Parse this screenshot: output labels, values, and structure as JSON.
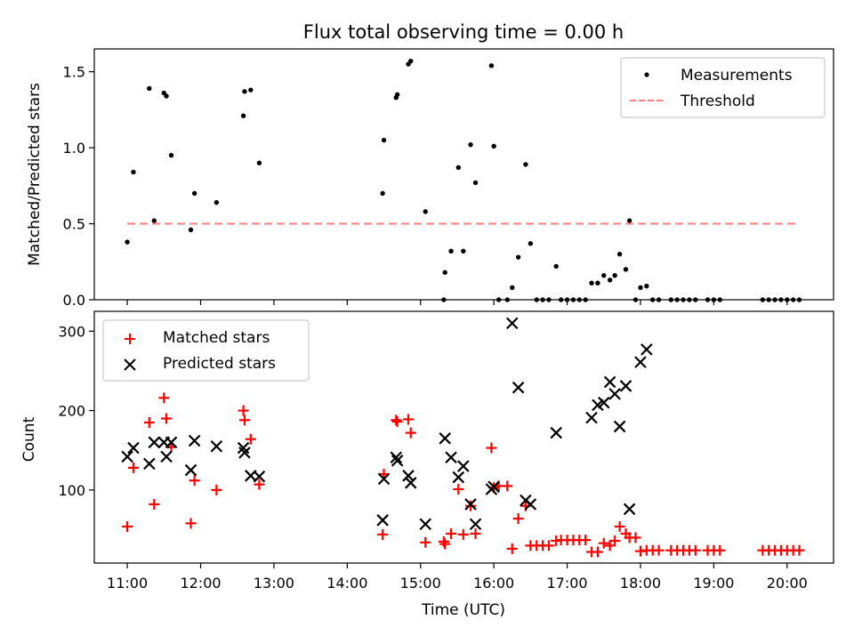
{
  "chart_data": [
    {
      "type": "scatter",
      "title": "Flux total observing time = 0.00 h",
      "xlabel": "",
      "ylabel": "Matched/Predicted stars",
      "x_unit": "time (UTC)",
      "xlim": [
        "10:33",
        "20:38"
      ],
      "ylim": [
        0,
        1.65
      ],
      "yticks": [
        0.0,
        0.5,
        1.0,
        1.5
      ],
      "ytick_labels": [
        "0.0",
        "0.5",
        "1.0",
        "1.5"
      ],
      "legend": {
        "placement": "upper right",
        "entries": [
          "Measurements",
          "Threshold"
        ]
      },
      "series": [
        {
          "name": "Measurements",
          "marker": "dot",
          "color": "#000000",
          "points": [
            [
              "11:00",
              0.38
            ],
            [
              "11:05",
              0.84
            ],
            [
              "11:18",
              1.39
            ],
            [
              "11:22",
              0.52
            ],
            [
              "11:30",
              1.36
            ],
            [
              "11:32",
              1.34
            ],
            [
              "11:36",
              0.95
            ],
            [
              "11:52",
              0.46
            ],
            [
              "11:55",
              0.7
            ],
            [
              "12:13",
              0.64
            ],
            [
              "12:35",
              1.21
            ],
            [
              "12:36",
              1.37
            ],
            [
              "12:41",
              1.38
            ],
            [
              "12:48",
              0.9
            ],
            [
              "14:29",
              0.7
            ],
            [
              "14:30",
              1.05
            ],
            [
              "14:40",
              1.33
            ],
            [
              "14:41",
              1.35
            ],
            [
              "14:50",
              1.55
            ],
            [
              "14:52",
              1.57
            ],
            [
              "15:04",
              0.58
            ],
            [
              "15:19",
              0.0
            ],
            [
              "15:20",
              0.18
            ],
            [
              "15:25",
              0.32
            ],
            [
              "15:31",
              0.87
            ],
            [
              "15:35",
              0.32
            ],
            [
              "15:41",
              1.02
            ],
            [
              "15:45",
              0.77
            ],
            [
              "15:58",
              1.54
            ],
            [
              "16:00",
              1.01
            ],
            [
              "16:04",
              0.0
            ],
            [
              "16:11",
              0.0
            ],
            [
              "16:15",
              0.08
            ],
            [
              "16:20",
              0.28
            ],
            [
              "16:26",
              0.89
            ],
            [
              "16:30",
              0.37
            ],
            [
              "16:35",
              0.0
            ],
            [
              "16:40",
              0.0
            ],
            [
              "16:45",
              0.0
            ],
            [
              "16:51",
              0.22
            ],
            [
              "16:55",
              0.0
            ],
            [
              "17:00",
              0.0
            ],
            [
              "17:05",
              0.0
            ],
            [
              "17:10",
              0.0
            ],
            [
              "17:15",
              0.0
            ],
            [
              "17:20",
              0.11
            ],
            [
              "17:25",
              0.11
            ],
            [
              "17:30",
              0.16
            ],
            [
              "17:35",
              0.13
            ],
            [
              "17:39",
              0.16
            ],
            [
              "17:43",
              0.3
            ],
            [
              "17:48",
              0.2
            ],
            [
              "17:51",
              0.52
            ],
            [
              "17:56",
              0.0
            ],
            [
              "18:00",
              0.08
            ],
            [
              "18:05",
              0.09
            ],
            [
              "18:10",
              0.0
            ],
            [
              "18:15",
              0.0
            ],
            [
              "18:25",
              0.0
            ],
            [
              "18:30",
              0.0
            ],
            [
              "18:35",
              0.0
            ],
            [
              "18:40",
              0.0
            ],
            [
              "18:45",
              0.0
            ],
            [
              "18:55",
              0.0
            ],
            [
              "19:00",
              0.0
            ],
            [
              "19:05",
              0.0
            ],
            [
              "19:40",
              0.0
            ],
            [
              "19:45",
              0.0
            ],
            [
              "19:50",
              0.0
            ],
            [
              "19:55",
              0.0
            ],
            [
              "20:00",
              0.0
            ],
            [
              "20:05",
              0.0
            ],
            [
              "20:10",
              0.0
            ]
          ]
        },
        {
          "name": "Threshold",
          "marker": "dashed-line",
          "color": "#ff7f7f",
          "points": [
            [
              "11:00",
              0.5
            ],
            [
              "20:10",
              0.5
            ]
          ]
        }
      ]
    },
    {
      "type": "scatter",
      "title": "",
      "xlabel": "Time (UTC)",
      "ylabel": "Count",
      "x_unit": "time (UTC)",
      "xlim": [
        "10:33",
        "20:38"
      ],
      "ylim": [
        8,
        325
      ],
      "xticks": [
        "11:00",
        "12:00",
        "13:00",
        "14:00",
        "15:00",
        "16:00",
        "17:00",
        "18:00",
        "19:00",
        "20:00"
      ],
      "yticks": [
        100,
        200,
        300
      ],
      "ytick_labels": [
        "100",
        "200",
        "300"
      ],
      "legend": {
        "placement": "upper left",
        "entries": [
          "Matched stars",
          "Predicted stars"
        ]
      },
      "series": [
        {
          "name": "Matched stars",
          "marker": "plus",
          "color": "#ff0000",
          "points": [
            [
              "11:00",
              54
            ],
            [
              "11:05",
              128
            ],
            [
              "11:18",
              185
            ],
            [
              "11:22",
              82
            ],
            [
              "11:30",
              216
            ],
            [
              "11:32",
              190
            ],
            [
              "11:36",
              154
            ],
            [
              "11:52",
              58
            ],
            [
              "11:55",
              112
            ],
            [
              "12:13",
              100
            ],
            [
              "12:35",
              200
            ],
            [
              "12:36",
              188
            ],
            [
              "12:41",
              164
            ],
            [
              "12:48",
              107
            ],
            [
              "14:29",
              44
            ],
            [
              "14:30",
              120
            ],
            [
              "14:40",
              188
            ],
            [
              "14:41",
              186
            ],
            [
              "14:50",
              189
            ],
            [
              "14:52",
              172
            ],
            [
              "15:04",
              34
            ],
            [
              "15:19",
              35
            ],
            [
              "15:20",
              32
            ],
            [
              "15:25",
              45
            ],
            [
              "15:31",
              101
            ],
            [
              "15:35",
              44
            ],
            [
              "15:41",
              80
            ],
            [
              "15:45",
              45
            ],
            [
              "15:58",
              153
            ],
            [
              "16:00",
              103
            ],
            [
              "16:04",
              105
            ],
            [
              "16:11",
              105
            ],
            [
              "16:15",
              26
            ],
            [
              "16:20",
              64
            ],
            [
              "16:26",
              80
            ],
            [
              "16:30",
              30
            ],
            [
              "16:35",
              30
            ],
            [
              "16:40",
              30
            ],
            [
              "16:45",
              30
            ],
            [
              "16:51",
              36
            ],
            [
              "16:55",
              37
            ],
            [
              "17:00",
              37
            ],
            [
              "17:05",
              37
            ],
            [
              "17:10",
              37
            ],
            [
              "17:15",
              37
            ],
            [
              "17:20",
              22
            ],
            [
              "17:25",
              22
            ],
            [
              "17:30",
              33
            ],
            [
              "17:35",
              30
            ],
            [
              "17:39",
              36
            ],
            [
              "17:43",
              54
            ],
            [
              "17:48",
              45
            ],
            [
              "17:51",
              40
            ],
            [
              "17:56",
              40
            ],
            [
              "18:00",
              23
            ],
            [
              "18:05",
              24
            ],
            [
              "18:10",
              24
            ],
            [
              "18:15",
              24
            ],
            [
              "18:25",
              24
            ],
            [
              "18:30",
              24
            ],
            [
              "18:35",
              24
            ],
            [
              "18:40",
              24
            ],
            [
              "18:45",
              24
            ],
            [
              "18:55",
              24
            ],
            [
              "19:00",
              24
            ],
            [
              "19:05",
              24
            ],
            [
              "19:40",
              24
            ],
            [
              "19:45",
              24
            ],
            [
              "19:50",
              24
            ],
            [
              "19:55",
              24
            ],
            [
              "20:00",
              24
            ],
            [
              "20:05",
              24
            ],
            [
              "20:10",
              24
            ]
          ]
        },
        {
          "name": "Predicted stars",
          "marker": "x",
          "color": "#000000",
          "points": [
            [
              "11:00",
              142
            ],
            [
              "11:05",
              153
            ],
            [
              "11:18",
              133
            ],
            [
              "11:22",
              160
            ],
            [
              "11:30",
              160
            ],
            [
              "11:32",
              142
            ],
            [
              "11:36",
              160
            ],
            [
              "11:52",
              125
            ],
            [
              "11:55",
              162
            ],
            [
              "12:13",
              155
            ],
            [
              "12:35",
              153
            ],
            [
              "12:36",
              147
            ],
            [
              "12:41",
              118
            ],
            [
              "12:48",
              117
            ],
            [
              "14:29",
              62
            ],
            [
              "14:30",
              114
            ],
            [
              "14:40",
              141
            ],
            [
              "14:41",
              137
            ],
            [
              "14:50",
              118
            ],
            [
              "14:52",
              109
            ],
            [
              "15:04",
              57
            ],
            [
              "15:20",
              165
            ],
            [
              "15:25",
              141
            ],
            [
              "15:31",
              116
            ],
            [
              "15:35",
              130
            ],
            [
              "15:41",
              82
            ],
            [
              "15:45",
              57
            ],
            [
              "15:58",
              101
            ],
            [
              "16:00",
              104
            ],
            [
              "16:15",
              310
            ],
            [
              "16:20",
              229
            ],
            [
              "16:26",
              87
            ],
            [
              "16:30",
              82
            ],
            [
              "16:51",
              172
            ],
            [
              "17:20",
              191
            ],
            [
              "17:25",
              207
            ],
            [
              "17:30",
              210
            ],
            [
              "17:35",
              236
            ],
            [
              "17:39",
              221
            ],
            [
              "17:43",
              180
            ],
            [
              "17:48",
              231
            ],
            [
              "17:51",
              76
            ],
            [
              "18:00",
              261
            ],
            [
              "18:05",
              277
            ]
          ]
        }
      ]
    }
  ]
}
